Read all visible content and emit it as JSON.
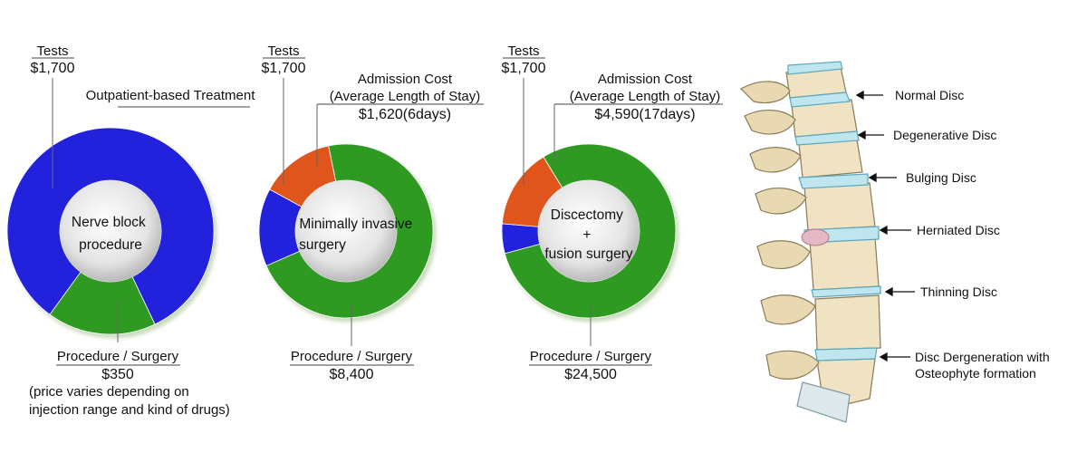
{
  "colors": {
    "tests": "#2020dd",
    "admission": "#e0541c",
    "procedure": "#2e9a22",
    "center": "#e6e6e6",
    "disc": "#bfe6ee",
    "bone": "#efe3c4"
  },
  "chart_data": [
    {
      "type": "pie",
      "center_label": [
        "Nerve block",
        "procedure"
      ],
      "tests_label": "Tests",
      "tests_value_label": "$1,700",
      "note": "Outpatient-based Treatment",
      "procedure_label": "Procedure / Surgery",
      "procedure_value_label": "$350",
      "procedure_note": [
        "(price varies depending on",
        "injection range and kind of drugs)"
      ],
      "slices": [
        {
          "name": "Tests",
          "value": 1700,
          "color": "#2020dd"
        },
        {
          "name": "Procedure / Surgery",
          "value": 350,
          "color": "#2e9a22"
        }
      ]
    },
    {
      "type": "pie",
      "center_label": [
        "Minimally invasive",
        "surgery"
      ],
      "tests_label": "Tests",
      "tests_value_label": "$1,700",
      "admission_label": [
        "Admission Cost",
        "(Average Length of Stay)"
      ],
      "admission_value_label": "$1,620(6days)",
      "procedure_label": "Procedure / Surgery",
      "procedure_value_label": "$8,400",
      "slices": [
        {
          "name": "Tests",
          "value": 1700,
          "color": "#2020dd"
        },
        {
          "name": "Admission Cost",
          "value": 1620,
          "color": "#e0541c"
        },
        {
          "name": "Procedure / Surgery",
          "value": 8400,
          "color": "#2e9a22"
        }
      ]
    },
    {
      "type": "pie",
      "center_label": [
        "Discectomy",
        "+",
        "fusion surgery"
      ],
      "tests_label": "Tests",
      "tests_value_label": "$1,700",
      "admission_label": [
        "Admission Cost",
        "(Average Length of Stay)"
      ],
      "admission_value_label": "$4,590(17days)",
      "procedure_label": "Procedure / Surgery",
      "procedure_value_label": "$24,500",
      "slices": [
        {
          "name": "Tests",
          "value": 1700,
          "color": "#2020dd"
        },
        {
          "name": "Admission Cost",
          "value": 4590,
          "color": "#e0541c"
        },
        {
          "name": "Procedure / Surgery",
          "value": 24500,
          "color": "#2e9a22"
        }
      ]
    }
  ],
  "spine": {
    "labels": [
      [
        "Normal Disc"
      ],
      [
        "Degenerative Disc"
      ],
      [
        "Bulging Disc"
      ],
      [
        "Herniated Disc"
      ],
      [
        "Thinning Disc"
      ],
      [
        "Disc Dergeneration with",
        "Osteophyte formation"
      ]
    ]
  }
}
